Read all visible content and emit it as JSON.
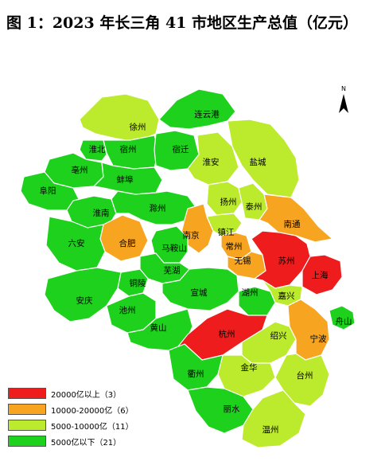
{
  "title": "图 1：2023 年长三角 41 市地区生产总值（亿元）",
  "north_label": "N",
  "colors": {
    "tier1": "#ee1c1c",
    "tier2": "#f7a520",
    "tier3": "#bcea2c",
    "tier4": "#1dd11d",
    "border": "#ffffff"
  },
  "legend": [
    {
      "tier": "tier1",
      "label": "20000亿以上（3）"
    },
    {
      "tier": "tier2",
      "label": "10000-20000亿（6）"
    },
    {
      "tier": "tier3",
      "label": "5000-10000亿（11）"
    },
    {
      "tier": "tier4",
      "label": "5000亿以下（21）"
    }
  ],
  "cities": [
    {
      "name": "徐州",
      "tier": "tier3"
    },
    {
      "name": "连云港",
      "tier": "tier4"
    },
    {
      "name": "宿州",
      "tier": "tier4"
    },
    {
      "name": "淮北",
      "tier": "tier4"
    },
    {
      "name": "宿迁",
      "tier": "tier4"
    },
    {
      "name": "盐城",
      "tier": "tier3"
    },
    {
      "name": "淮安",
      "tier": "tier3"
    },
    {
      "name": "亳州",
      "tier": "tier4"
    },
    {
      "name": "蚌埠",
      "tier": "tier4"
    },
    {
      "name": "阜阳",
      "tier": "tier4"
    },
    {
      "name": "扬州",
      "tier": "tier3"
    },
    {
      "name": "泰州",
      "tier": "tier3"
    },
    {
      "name": "南通",
      "tier": "tier2"
    },
    {
      "name": "淮南",
      "tier": "tier4"
    },
    {
      "name": "滁州",
      "tier": "tier4"
    },
    {
      "name": "南京",
      "tier": "tier2"
    },
    {
      "name": "镇江",
      "tier": "tier3"
    },
    {
      "name": "常州",
      "tier": "tier2"
    },
    {
      "name": "合肥",
      "tier": "tier2"
    },
    {
      "name": "六安",
      "tier": "tier4"
    },
    {
      "name": "马鞍山",
      "tier": "tier4"
    },
    {
      "name": "无锡",
      "tier": "tier2"
    },
    {
      "name": "苏州",
      "tier": "tier1"
    },
    {
      "name": "上海",
      "tier": "tier1"
    },
    {
      "name": "芜湖",
      "tier": "tier4"
    },
    {
      "name": "铜陵",
      "tier": "tier4"
    },
    {
      "name": "安庆",
      "tier": "tier4"
    },
    {
      "name": "宣城",
      "tier": "tier4"
    },
    {
      "name": "湖州",
      "tier": "tier4"
    },
    {
      "name": "嘉兴",
      "tier": "tier3"
    },
    {
      "name": "池州",
      "tier": "tier4"
    },
    {
      "name": "黄山",
      "tier": "tier4"
    },
    {
      "name": "杭州",
      "tier": "tier1"
    },
    {
      "name": "绍兴",
      "tier": "tier3"
    },
    {
      "name": "宁波",
      "tier": "tier2"
    },
    {
      "name": "舟山",
      "tier": "tier4"
    },
    {
      "name": "金华",
      "tier": "tier3"
    },
    {
      "name": "衢州",
      "tier": "tier4"
    },
    {
      "name": "台州",
      "tier": "tier3"
    },
    {
      "name": "丽水",
      "tier": "tier4"
    },
    {
      "name": "温州",
      "tier": "tier3"
    }
  ]
}
